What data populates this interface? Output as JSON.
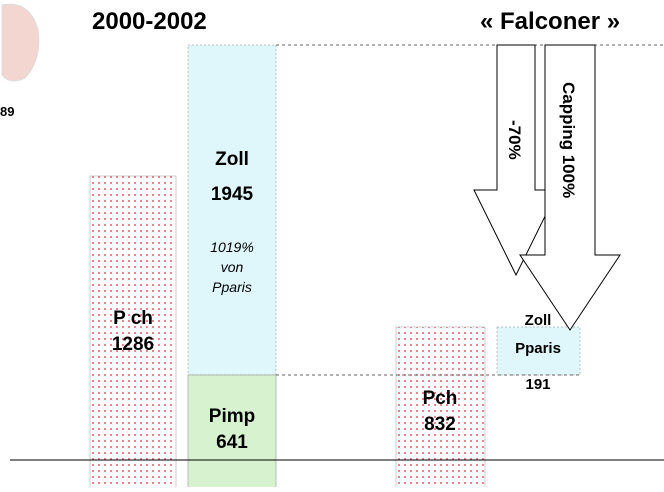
{
  "header": {
    "title": "2000-2002",
    "right_title": "« Falconer »",
    "image_caption": "89"
  },
  "left": {
    "pch": {
      "label": "P ch",
      "value": "1286"
    },
    "zoll": {
      "label": "Zoll",
      "value": "1945",
      "note": [
        "1019%",
        "von",
        "Pparis"
      ]
    },
    "pimp": {
      "label": "Pimp",
      "value": "641"
    }
  },
  "right": {
    "pch": {
      "label": "Pch",
      "value": "832"
    },
    "zoll": {
      "label": "Zoll",
      "sublabel": "Pparis",
      "value": "191"
    }
  },
  "arrows": [
    "-70%",
    "Capping 100%"
  ]
}
